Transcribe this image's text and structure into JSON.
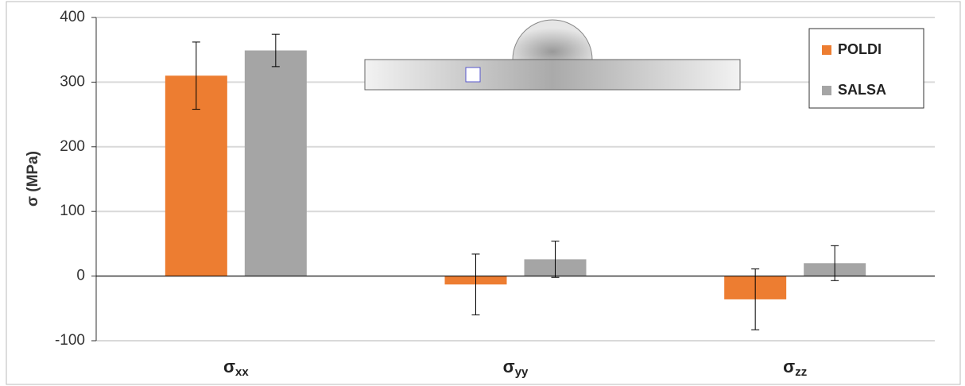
{
  "chart_data": {
    "type": "bar",
    "y_label": "σ (MPa)",
    "categories": [
      "σxx",
      "σyy",
      "σzz"
    ],
    "series": [
      {
        "name": "POLDI",
        "color": "#ed7d31",
        "values": [
          310,
          -13,
          -36
        ],
        "errors": [
          52,
          47,
          47
        ]
      },
      {
        "name": "SALSA",
        "color": "#a5a5a5",
        "values": [
          349,
          26,
          20
        ],
        "errors": [
          25,
          28,
          27
        ]
      }
    ],
    "ylim": [
      -100,
      400
    ],
    "yticks": [
      -100,
      0,
      100,
      200,
      300,
      400
    ],
    "grid": true,
    "legend": "top-right"
  }
}
